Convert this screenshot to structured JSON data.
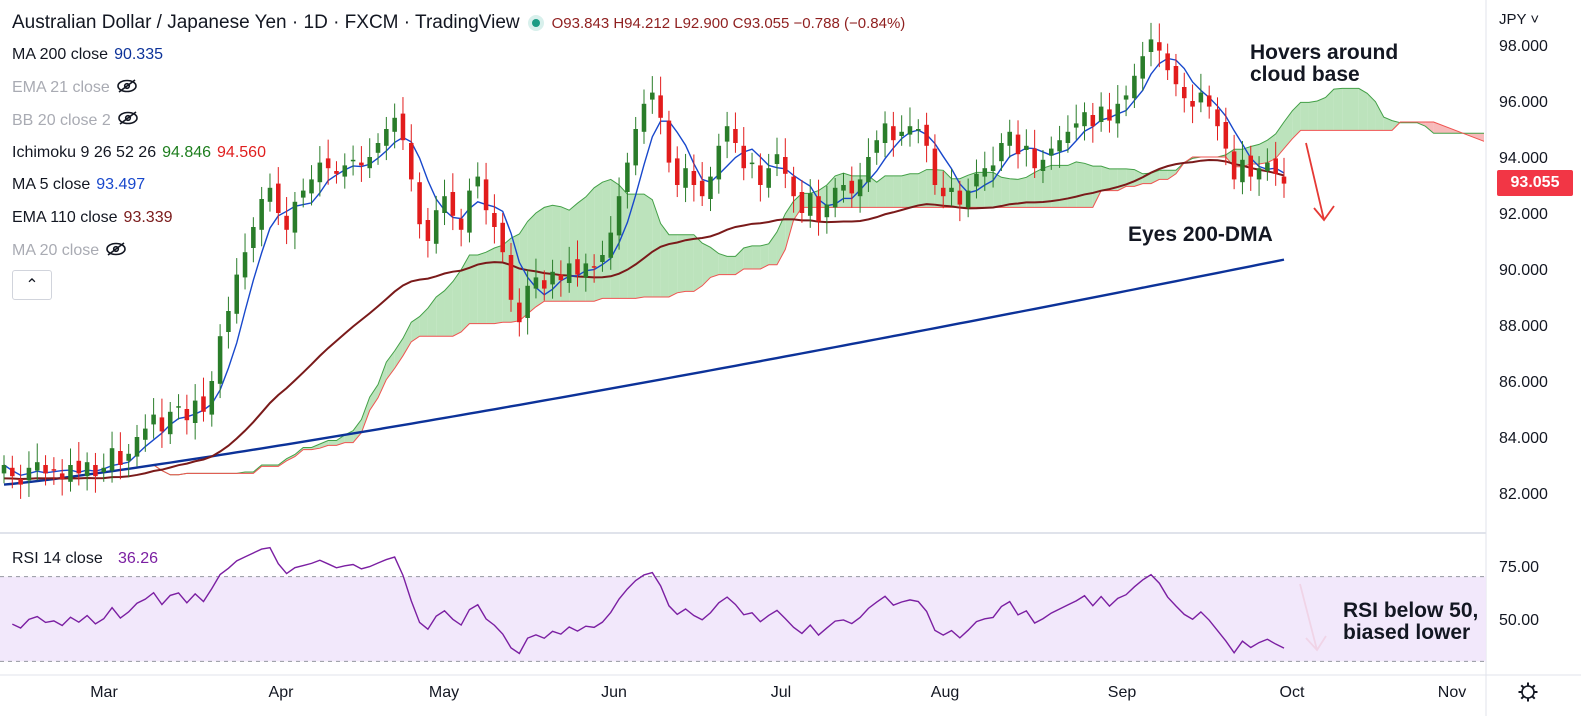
{
  "header": {
    "title": "Australian Dollar / Japanese Yen · 1D · FXCM · TradingView",
    "ohlc": {
      "open": "O93.843",
      "high": "H94.212",
      "low": "L92.900",
      "close": "C93.055",
      "change": "−0.788 (−0.84%)"
    }
  },
  "indicators": [
    {
      "label": "MA 200 close",
      "value": "90.335",
      "color": "#0c3299",
      "visible": true
    },
    {
      "label": "EMA 21 close",
      "value": "",
      "color": "#a9abb3",
      "visible": false
    },
    {
      "label": "BB 20 close 2",
      "value": "",
      "color": "#a9abb3",
      "visible": false
    },
    {
      "label": "Ichimoku 9 26 52 26",
      "value": "94.846",
      "value2": "94.560",
      "color": "#1e7e1e",
      "color2": "#e01f1f",
      "visible": true
    },
    {
      "label": "MA 5 close",
      "value": "93.497",
      "color": "#1848cc",
      "visible": true
    },
    {
      "label": "EMA 110 close",
      "value": "93.339",
      "color": "#7a1a1a",
      "visible": true
    },
    {
      "label": "MA 20 close",
      "value": "",
      "color": "#a9abb3",
      "visible": false
    }
  ],
  "collapse_button": {
    "label": "⌃"
  },
  "price_scale": {
    "currency": "JPY",
    "ticks": [
      "98.000",
      "96.000",
      "94.000",
      "92.000",
      "90.000",
      "88.000",
      "86.000",
      "84.000",
      "82.000"
    ],
    "last_price": "93.055"
  },
  "rsi_panel": {
    "label": "RSI 14 close",
    "value": "36.26",
    "ticks": [
      "75.00",
      "50.00"
    ]
  },
  "time_axis": [
    "Mar",
    "Apr",
    "May",
    "Jun",
    "Jul",
    "Aug",
    "Sep",
    "Oct",
    "Nov"
  ],
  "annotations": {
    "cloud": "Hovers around\ncloud base",
    "dma": "Eyes 200-DMA",
    "rsi": "RSI below 50,\nbiased lower"
  },
  "colors": {
    "up": "#26a69a",
    "candle_up": "#2a7d2a",
    "candle_down": "#e21c1c",
    "ma200": "#0c3299",
    "ema110": "#7a1a1a",
    "ma5": "#1848cc",
    "cloud_bull": "#a6d9a6",
    "cloud_bear": "#f4a3a3",
    "rsi": "#7b1fa2",
    "rsi_band": "#f1e6fb"
  },
  "chart_data": {
    "type": "candlestick",
    "title": "Australian Dollar / Japanese Yen · 1D · FXCM",
    "ylim": [
      80.5,
      99.0
    ],
    "x_labels": [
      "Mar",
      "Apr",
      "May",
      "Jun",
      "Jul",
      "Aug",
      "Sep",
      "Oct",
      "Nov"
    ],
    "closes": [
      83.0,
      82.6,
      82.3,
      82.9,
      83.1,
      82.7,
      82.8,
      82.5,
      83.0,
      82.7,
      83.1,
      82.6,
      82.9,
      83.6,
      83.0,
      83.4,
      84.0,
      84.3,
      84.8,
      84.2,
      84.9,
      85.1,
      84.6,
      85.3,
      84.9,
      86.0,
      87.6,
      88.5,
      89.8,
      90.6,
      91.5,
      92.5,
      92.9,
      92.0,
      91.4,
      92.4,
      92.8,
      93.2,
      93.8,
      93.6,
      93.4,
      93.7,
      93.9,
      93.7,
      94.0,
      94.5,
      95.0,
      95.4,
      94.6,
      93.2,
      91.6,
      91.0,
      92.1,
      92.6,
      91.9,
      91.4,
      92.8,
      93.3,
      92.1,
      91.5,
      90.6,
      88.9,
      88.1,
      89.4,
      89.7,
      89.3,
      89.9,
      89.6,
      90.2,
      89.8,
      90.2,
      90.1,
      90.5,
      91.3,
      92.6,
      93.8,
      95.0,
      95.9,
      96.3,
      95.4,
      93.8,
      93.0,
      93.6,
      93.0,
      92.6,
      93.3,
      94.4,
      95.1,
      94.5,
      93.6,
      93.8,
      93.0,
      93.6,
      94.1,
      93.4,
      92.6,
      92.0,
      92.7,
      91.7,
      92.3,
      92.9,
      93.0,
      92.7,
      93.2,
      94.0,
      94.6,
      95.2,
      94.6,
      94.9,
      95.1,
      95.0,
      94.4,
      93.0,
      92.6,
      92.9,
      92.3,
      92.8,
      93.4,
      93.6,
      93.7,
      94.5,
      94.9,
      94.1,
      94.4,
      93.6,
      93.9,
      94.3,
      94.6,
      94.9,
      95.2,
      95.6,
      95.1,
      95.8,
      95.3,
      95.9,
      96.2,
      96.9,
      97.6,
      98.2,
      97.8,
      97.1,
      96.6,
      96.1,
      95.8,
      96.3,
      95.8,
      95.1,
      94.3,
      93.2,
      93.9,
      93.3,
      93.6,
      93.8,
      93.4,
      93.05
    ],
    "ma200": [
      82.3,
      90.335
    ],
    "ema110": [
      82.5,
      93.339
    ],
    "ma5_last": 93.497,
    "ichimoku": {
      "span_a_last": 94.846,
      "span_b_last": 94.56
    },
    "rsi": {
      "name": "RSI 14 close",
      "last": 36.26,
      "levels": [
        70,
        30
      ]
    }
  }
}
